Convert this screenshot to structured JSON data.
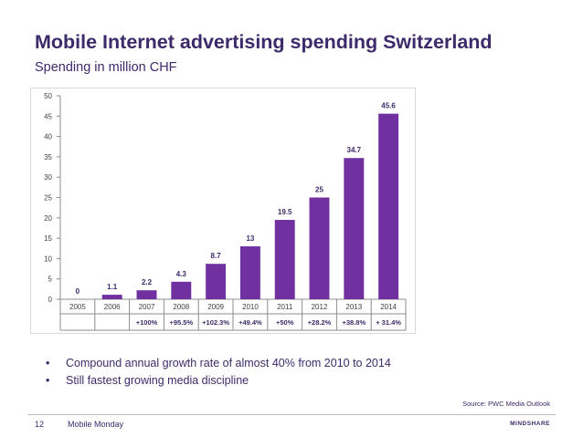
{
  "slide": {
    "title": "Mobile Internet advertising spending Switzerland",
    "subtitle": "Spending in million CHF",
    "bullets": [
      "Compound annual growth rate of almost 40% from 2010 to 2014",
      "Still fastest growing media discipline"
    ],
    "source": "Source: PWC Media Outlook",
    "page_number": "12",
    "footer_text": "Mobile Monday",
    "brand": "MINDSHARE"
  },
  "chart_data": {
    "type": "bar",
    "title": "",
    "xlabel": "",
    "ylabel": "",
    "categories": [
      "2005",
      "2006",
      "2007",
      "2008",
      "2009",
      "2010",
      "2011",
      "2012",
      "2013",
      "2014"
    ],
    "values": [
      0,
      1.1,
      2.2,
      4.3,
      8.7,
      13,
      19.5,
      25,
      34.7,
      45.6
    ],
    "data_labels": [
      "0",
      "1.1",
      "2.2",
      "4.3",
      "8.7",
      "13",
      "19.5",
      "25",
      "34.7",
      "45.6"
    ],
    "growth_labels": [
      "",
      "",
      "+100%",
      "+95.5%",
      "+102.3%",
      "+49.4%",
      "+50%",
      "+28.2%",
      "+38.8%",
      "+ 31.4%"
    ],
    "ylim": [
      0,
      50
    ],
    "yticks": [
      0,
      5,
      10,
      15,
      20,
      25,
      30,
      35,
      40,
      45,
      50
    ],
    "grid": false,
    "legend": "none",
    "bar_color": "#7030a0"
  }
}
